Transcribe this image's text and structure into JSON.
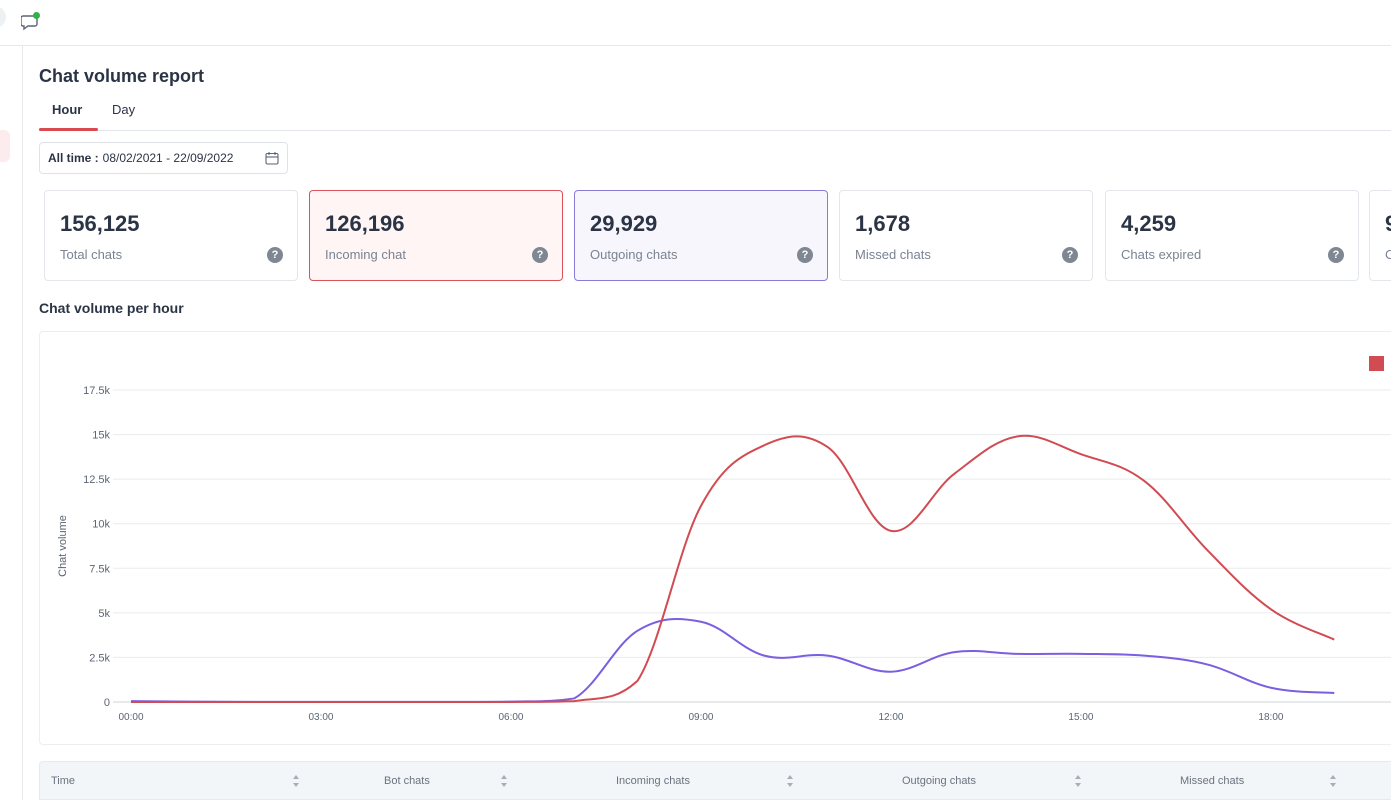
{
  "page": {
    "title": "Chat volume report"
  },
  "tabs": [
    {
      "label": "Hour",
      "active": true
    },
    {
      "label": "Day",
      "active": false
    }
  ],
  "date_filter": {
    "label": "All time :",
    "value": "08/02/2021 - 22/09/2022"
  },
  "stats": [
    {
      "value": "156,125",
      "label": "Total chats"
    },
    {
      "value": "126,196",
      "label": "Incoming chat"
    },
    {
      "value": "29,929",
      "label": "Outgoing chats"
    },
    {
      "value": "1,678",
      "label": "Missed chats"
    },
    {
      "value": "4,259",
      "label": "Chats expired"
    },
    {
      "value": "9",
      "label": "C"
    }
  ],
  "section_title": "Chat volume per hour",
  "colors": {
    "accent": "#d84a4f",
    "incoming_line": "#d14b52",
    "outgoing_line": "#7b5fe0"
  },
  "chart_data": {
    "type": "line",
    "ylabel": "Chat volume",
    "ylim": [
      0,
      17500
    ],
    "y_ticks": [
      "0",
      "2.5k",
      "5k",
      "7.5k",
      "10k",
      "12.5k",
      "15k",
      "17.5k"
    ],
    "x_ticks": [
      "00:00",
      "03:00",
      "06:00",
      "09:00",
      "12:00",
      "15:00",
      "18:00"
    ],
    "legend_position": "top-right",
    "grid": true,
    "x": [
      0,
      1,
      2,
      3,
      4,
      5,
      6,
      7,
      8,
      9,
      10,
      11,
      12,
      13,
      14,
      15,
      16,
      17,
      18,
      19
    ],
    "series": [
      {
        "color": "#d14b52",
        "values": [
          0,
          0,
          0,
          0,
          0,
          0,
          0,
          50,
          1200,
          11000,
          14400,
          14300,
          9600,
          12800,
          14900,
          13900,
          12400,
          8500,
          5200,
          3500
        ]
      },
      {
        "color": "#7b5fe0",
        "values": [
          50,
          20,
          10,
          10,
          10,
          10,
          20,
          200,
          4000,
          4500,
          2600,
          2600,
          1700,
          2800,
          2700,
          2700,
          2600,
          2100,
          800,
          500
        ]
      }
    ]
  },
  "table": {
    "headers": [
      "Time",
      "Bot chats",
      "Incoming chats",
      "Outgoing chats",
      "Missed chats"
    ]
  }
}
